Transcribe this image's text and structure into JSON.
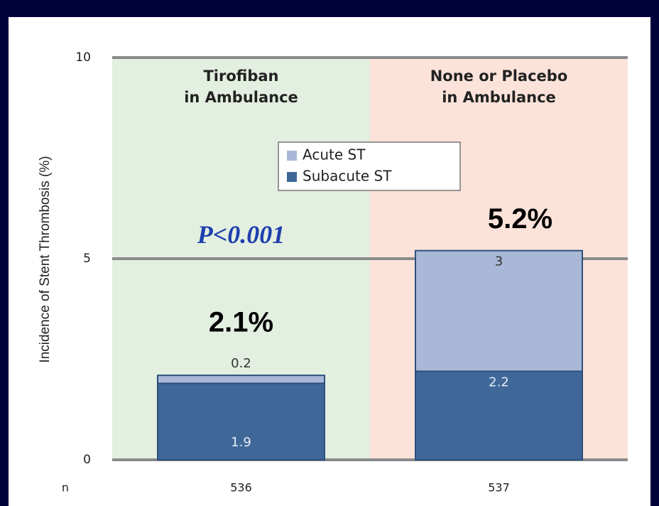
{
  "chart_data": {
    "type": "stacked_bar",
    "ylabel": "Incidence of Stent Thrombosis (%)",
    "categories": [
      "Tirofiban\nin Ambulance",
      "None or Placebo\nin Ambulance"
    ],
    "series": [
      {
        "name": "Subacute ST",
        "color": "#3f6899",
        "values": [
          1.9,
          2.2
        ]
      },
      {
        "name": "Acute ST",
        "color": "#a9b8d6",
        "values": [
          0.2,
          3.0
        ]
      }
    ],
    "totals": [
      2.1,
      5.2
    ],
    "total_labels": [
      "2.1%",
      "5.2%"
    ],
    "region_colors": [
      "#e3efe0",
      "#fce3da"
    ],
    "ylim": [
      0,
      10
    ],
    "yticks": [
      0,
      5,
      10
    ],
    "grid": true,
    "annotations": [
      {
        "text": "P<0.001",
        "x": 0,
        "y": 5.5
      }
    ],
    "n_label": "n",
    "n_values": [
      536,
      537
    ]
  }
}
